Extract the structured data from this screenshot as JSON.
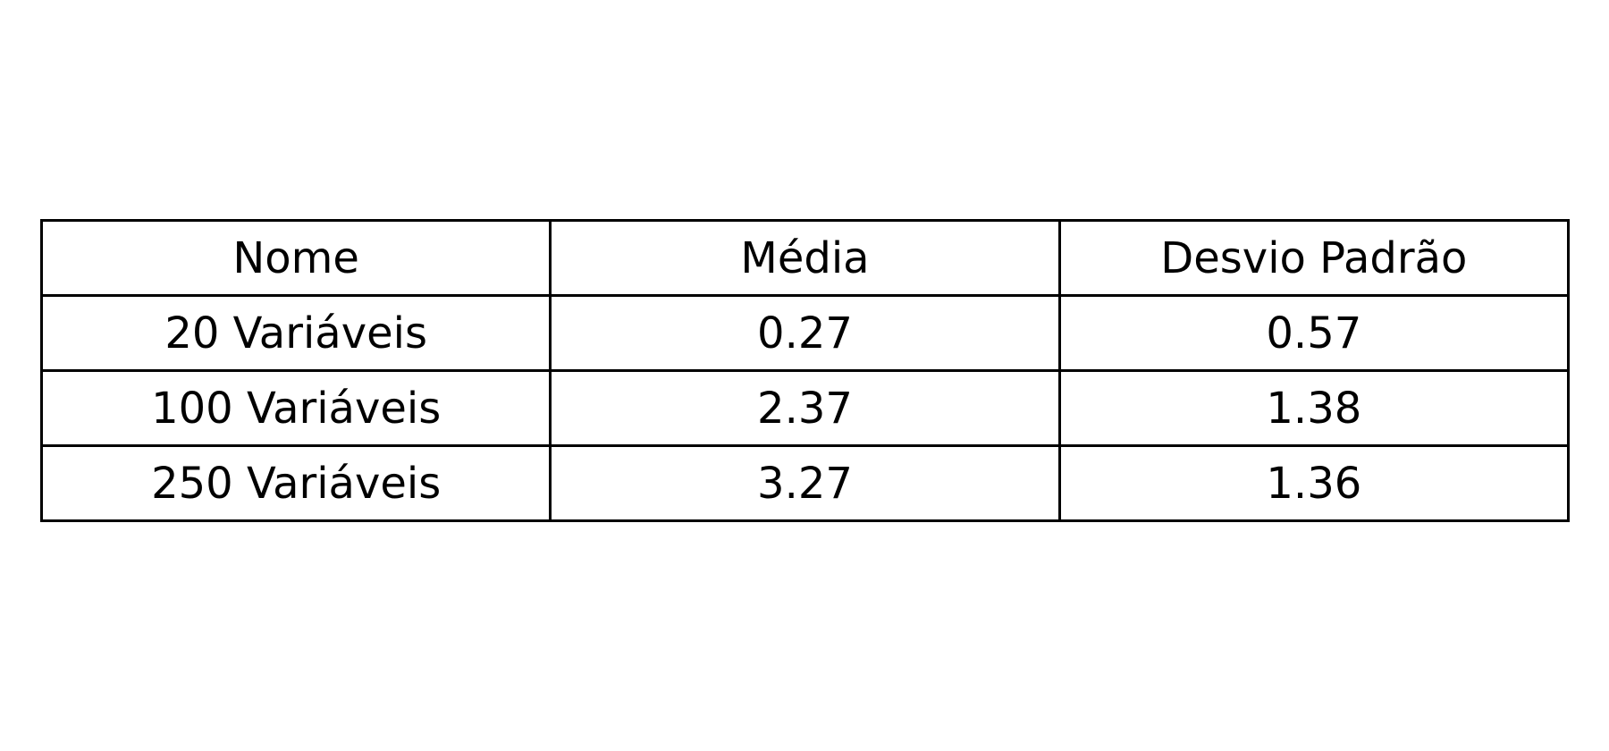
{
  "chart_data": {
    "type": "table",
    "columns": [
      "Nome",
      "Média",
      "Desvio Padrão"
    ],
    "rows": [
      [
        "20 Variáveis",
        "0.27",
        "0.57"
      ],
      [
        "100 Variáveis",
        "2.37",
        "1.38"
      ],
      [
        "250 Variáveis",
        "3.27",
        "1.36"
      ]
    ]
  }
}
